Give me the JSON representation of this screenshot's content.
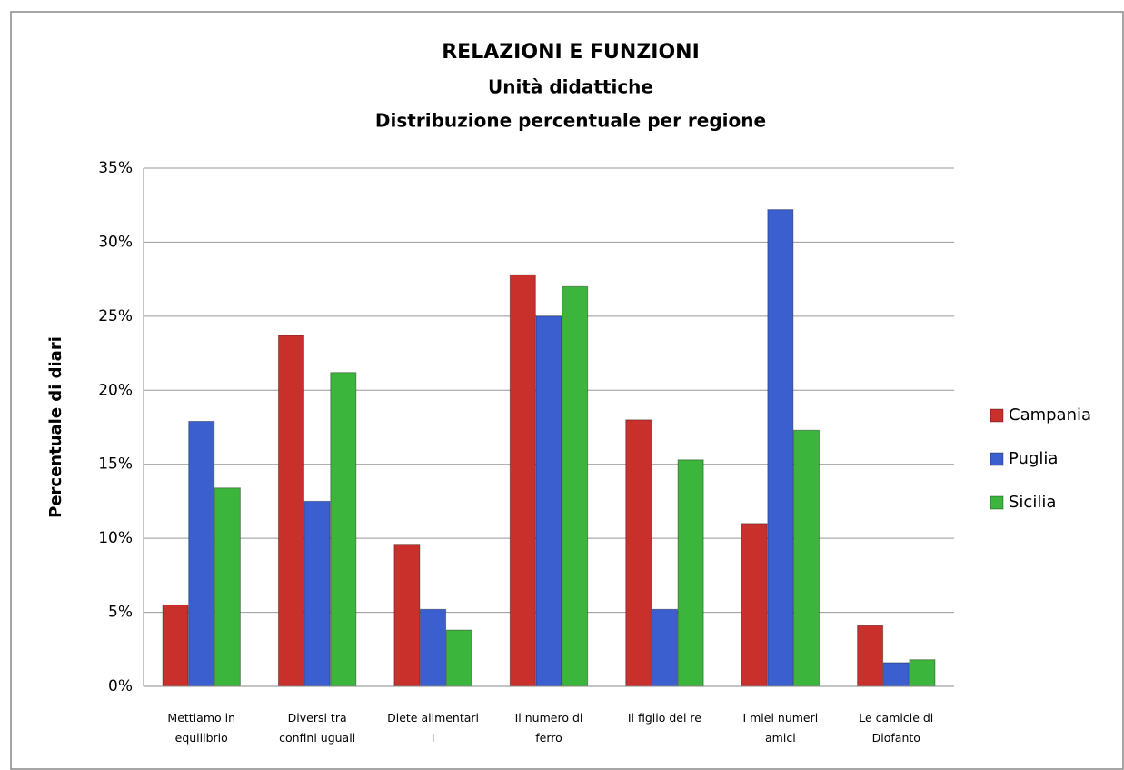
{
  "chart_data": {
    "type": "bar",
    "title": "RELAZIONI E FUNZIONI",
    "subtitle": [
      "Unità didattiche",
      "Distribuzione percentuale per regione"
    ],
    "y_label": "Percentuale di diari",
    "categories": [
      "Mettiamo in equilibrio",
      "Diversi tra confini uguali",
      "Diete alimentari I",
      "Il numero di ferro",
      "Il figlio del re",
      "I miei numeri amici",
      "Le camicie di Diofanto"
    ],
    "series": [
      {
        "name": "Campania",
        "color": "#c9302c",
        "values": [
          5.5,
          23.7,
          9.6,
          27.8,
          18.0,
          11.0,
          4.1
        ]
      },
      {
        "name": "Puglia",
        "color": "#3b5fcf",
        "values": [
          17.9,
          12.5,
          5.2,
          25.0,
          5.2,
          32.2,
          1.6
        ]
      },
      {
        "name": "Sicilia",
        "color": "#3cb53c",
        "values": [
          13.4,
          21.2,
          3.8,
          27.0,
          15.3,
          17.3,
          1.8
        ]
      }
    ],
    "ylim": [
      0,
      35
    ],
    "yticks": [
      {
        "value": 0,
        "label": "0%"
      },
      {
        "value": 5,
        "label": "5%"
      },
      {
        "value": 10,
        "label": "10%"
      },
      {
        "value": 15,
        "label": "15%"
      },
      {
        "value": 20,
        "label": "20%"
      },
      {
        "value": 25,
        "label": "25%"
      },
      {
        "value": 30,
        "label": "30%"
      },
      {
        "value": 35,
        "label": "35%"
      }
    ],
    "grid": true,
    "legend": "right"
  }
}
